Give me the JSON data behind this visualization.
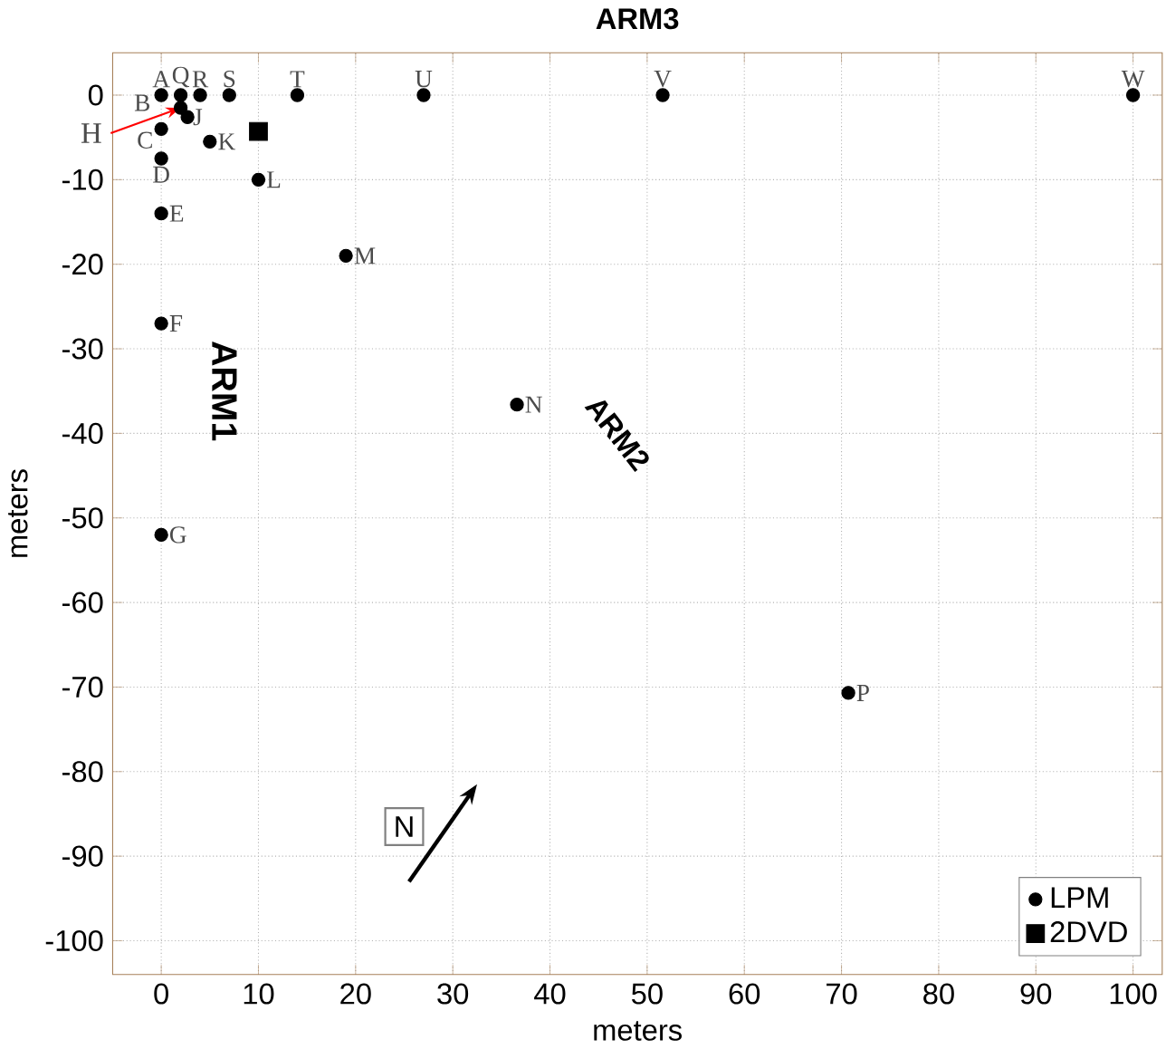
{
  "chart_data": {
    "type": "scatter",
    "title": "ARM3",
    "xlabel": "meters",
    "ylabel": "meters",
    "xlim": [
      -5,
      103
    ],
    "ylim": [
      -104,
      5
    ],
    "xticks": [
      0,
      10,
      20,
      30,
      40,
      50,
      60,
      70,
      80,
      90,
      100
    ],
    "yticks": [
      -100,
      -90,
      -80,
      -70,
      -60,
      -50,
      -40,
      -30,
      -20,
      -10,
      0
    ],
    "grid": true,
    "legend": "bottom right",
    "series": [
      {
        "name": "LPM",
        "color": "#000000",
        "marker": "circle",
        "x": [
          0,
          2,
          0,
          0,
          0,
          0,
          0,
          2.7,
          5,
          10,
          19,
          36.6,
          70.7,
          2,
          4,
          7,
          14,
          27,
          51.6,
          100
        ],
        "values": [
          0,
          -1.5,
          -4,
          -7.5,
          -14,
          -27,
          -52,
          -2.6,
          -5.5,
          -10,
          -19,
          -36.6,
          -70.7,
          0,
          0,
          0,
          0,
          0,
          0,
          0
        ],
        "value_labels": [
          "A",
          "B",
          "C",
          "D",
          "E",
          "F",
          "G",
          "J",
          "K",
          "L",
          "M",
          "N",
          "P",
          "Q",
          "R",
          "S",
          "T",
          "U",
          "V",
          "W"
        ]
      },
      {
        "name": "2DVD",
        "color": "#000000",
        "marker": "square",
        "x": [
          10
        ],
        "values": [
          -4.3
        ]
      }
    ],
    "annotations": [
      {
        "text": "H",
        "x": 2,
        "y": -1.5
      },
      "ARM1",
      "ARM2",
      "N"
    ]
  }
}
